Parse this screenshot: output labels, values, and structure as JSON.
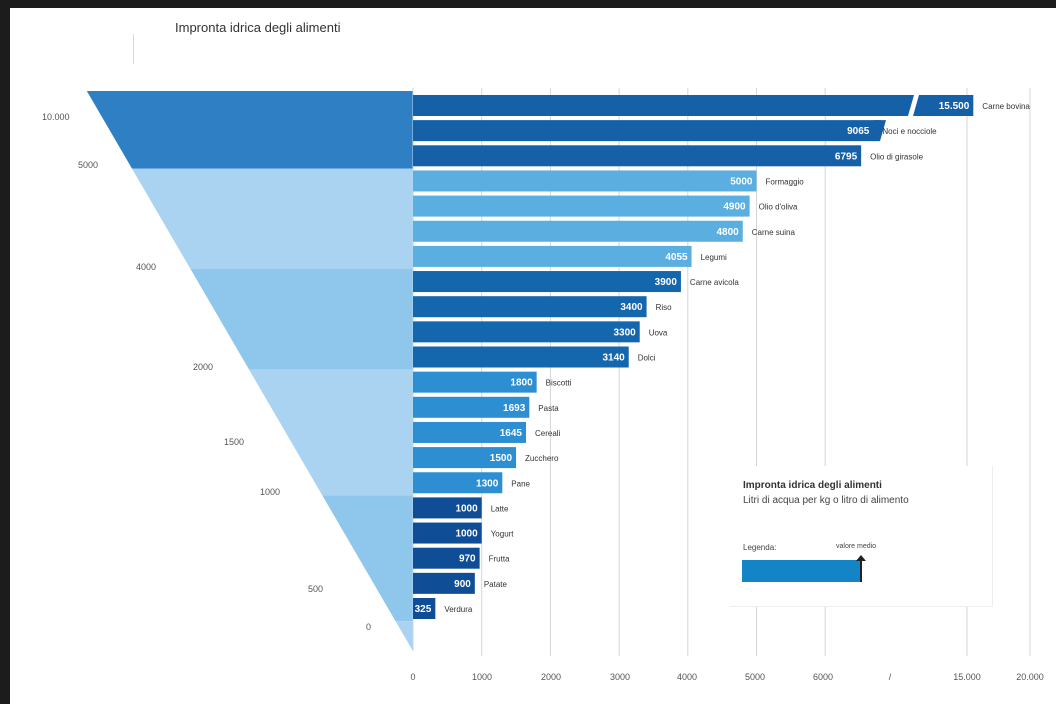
{
  "chart_data": {
    "type": "bar",
    "orientation": "horizontal",
    "title": "Impronta idrica degli alimenti",
    "xlabel": "",
    "ylabel": "",
    "categories": [
      "Carne bovina",
      "Noci e nocciole",
      "Olio di girasole",
      "Formaggio",
      "Olio d'oliva",
      "Carne suina",
      "Legumi",
      "Carne avicola",
      "Riso",
      "Uova",
      "Dolci",
      "Biscotti",
      "Pasta",
      "Cereali",
      "Zucchero",
      "Pane",
      "Latte",
      "Yogurt",
      "Frutta",
      "Patate",
      "Verdura"
    ],
    "values": [
      15500,
      9065,
      6795,
      5000,
      4900,
      4800,
      4055,
      3900,
      3400,
      3300,
      3140,
      1800,
      1693,
      1645,
      1500,
      1300,
      1000,
      1000,
      970,
      900,
      325
    ],
    "value_labels": [
      "15.500",
      "9065",
      "6795",
      "5000",
      "4900",
      "4800",
      "4055",
      "3900",
      "3400",
      "3300",
      "3140",
      "1800",
      "1693",
      "1645",
      "1500",
      "1300",
      "1000",
      "1000",
      "970",
      "900",
      "325"
    ],
    "groups": [
      {
        "name": "top",
        "count": 3,
        "color": "#1660a8"
      },
      {
        "name": "upper",
        "count": 4,
        "color": "#5aaee0"
      },
      {
        "name": "middle",
        "count": 4,
        "color": "#1466ad"
      },
      {
        "name": "lower",
        "count": 5,
        "color": "#2d8fd2"
      },
      {
        "name": "bottom",
        "count": 5,
        "color": "#0f4e96"
      }
    ],
    "x_ticks": [
      "0",
      "1000",
      "2000",
      "3000",
      "4000",
      "5000",
      "6000",
      "/",
      "15.000",
      "20.000"
    ],
    "x_tick_values": [
      0,
      1000,
      2000,
      3000,
      4000,
      5000,
      6000,
      null,
      15000,
      20000
    ],
    "axis_break": [
      6500,
      14000
    ],
    "xlim": [
      0,
      20000
    ],
    "grid": true,
    "funnel_labels": [
      "10.000",
      "5000",
      "4000",
      "2000",
      "1500",
      "1000",
      "500",
      "0"
    ],
    "broken_bars": [
      "Carne bovina",
      "Noci e nocciole"
    ]
  },
  "legend": {
    "title": "Impronta idrica degli alimenti",
    "subtitle": "Litri di acqua per kg o litro di alimento",
    "label": "Legenda:",
    "marker_label": "valore medio"
  },
  "colors": {
    "funnel_light": "#a9d3f0",
    "funnel_mid": "#6cb8e8",
    "funnel_dark": "#2f7fc4",
    "label_text": "#333333",
    "value_text": "#ffffff",
    "grid": "#d6d6d6"
  }
}
